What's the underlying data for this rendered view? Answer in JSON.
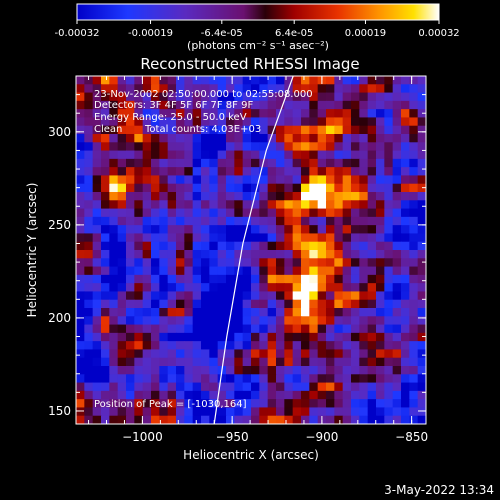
{
  "colorbar": {
    "unit_label": "(photons cm⁻² s⁻¹ asec⁻²)",
    "tick_labels": [
      "-0.00032",
      "-0.00019",
      "-6.4e-05",
      "6.4e-05",
      "0.00019",
      "0.00032"
    ],
    "tick_values": [
      -0.00032,
      -0.00019,
      -6.4e-05,
      6.4e-05,
      0.00019,
      0.00032
    ],
    "range": [
      -0.00032,
      0.00032
    ]
  },
  "chart_data": {
    "type": "heatmap",
    "title": "Reconstructed RHESSI Image",
    "xlabel": "Heliocentric X (arcsec)",
    "ylabel": "Heliocentric Y (arcsec)",
    "xlim": [
      -1037,
      -842
    ],
    "ylim": [
      143,
      330
    ],
    "x_ticks": [
      -1000,
      -950,
      -900,
      -850
    ],
    "x_tick_labels": [
      "−1000",
      "−950",
      "−900",
      "−850"
    ],
    "y_ticks": [
      150,
      200,
      250,
      300
    ],
    "y_tick_labels": [
      "150",
      "200",
      "250",
      "300"
    ],
    "grid": false,
    "colormap": "rainbow-blue-to-white",
    "limb_curve": [
      [
        -960,
        143
      ],
      [
        -953,
        190
      ],
      [
        -944,
        240
      ],
      [
        -931,
        290
      ],
      [
        -916,
        330
      ]
    ],
    "peak": [
      -1030,
      164
    ],
    "annotations": {
      "time": "23-Nov-2002 02:50:00.000 to 02:55:08.000",
      "detectors": "Detectors: 3F 4F 5F 6F 7F 8F 9F",
      "energy": "Energy Range: 25.0 - 50.0 keV",
      "method": "Clean",
      "counts": "Total counts: 4.03E+03",
      "peak": "Position of Peak = [-1030,164]"
    }
  },
  "footer": {
    "date": "3-May-2022 13:34"
  }
}
